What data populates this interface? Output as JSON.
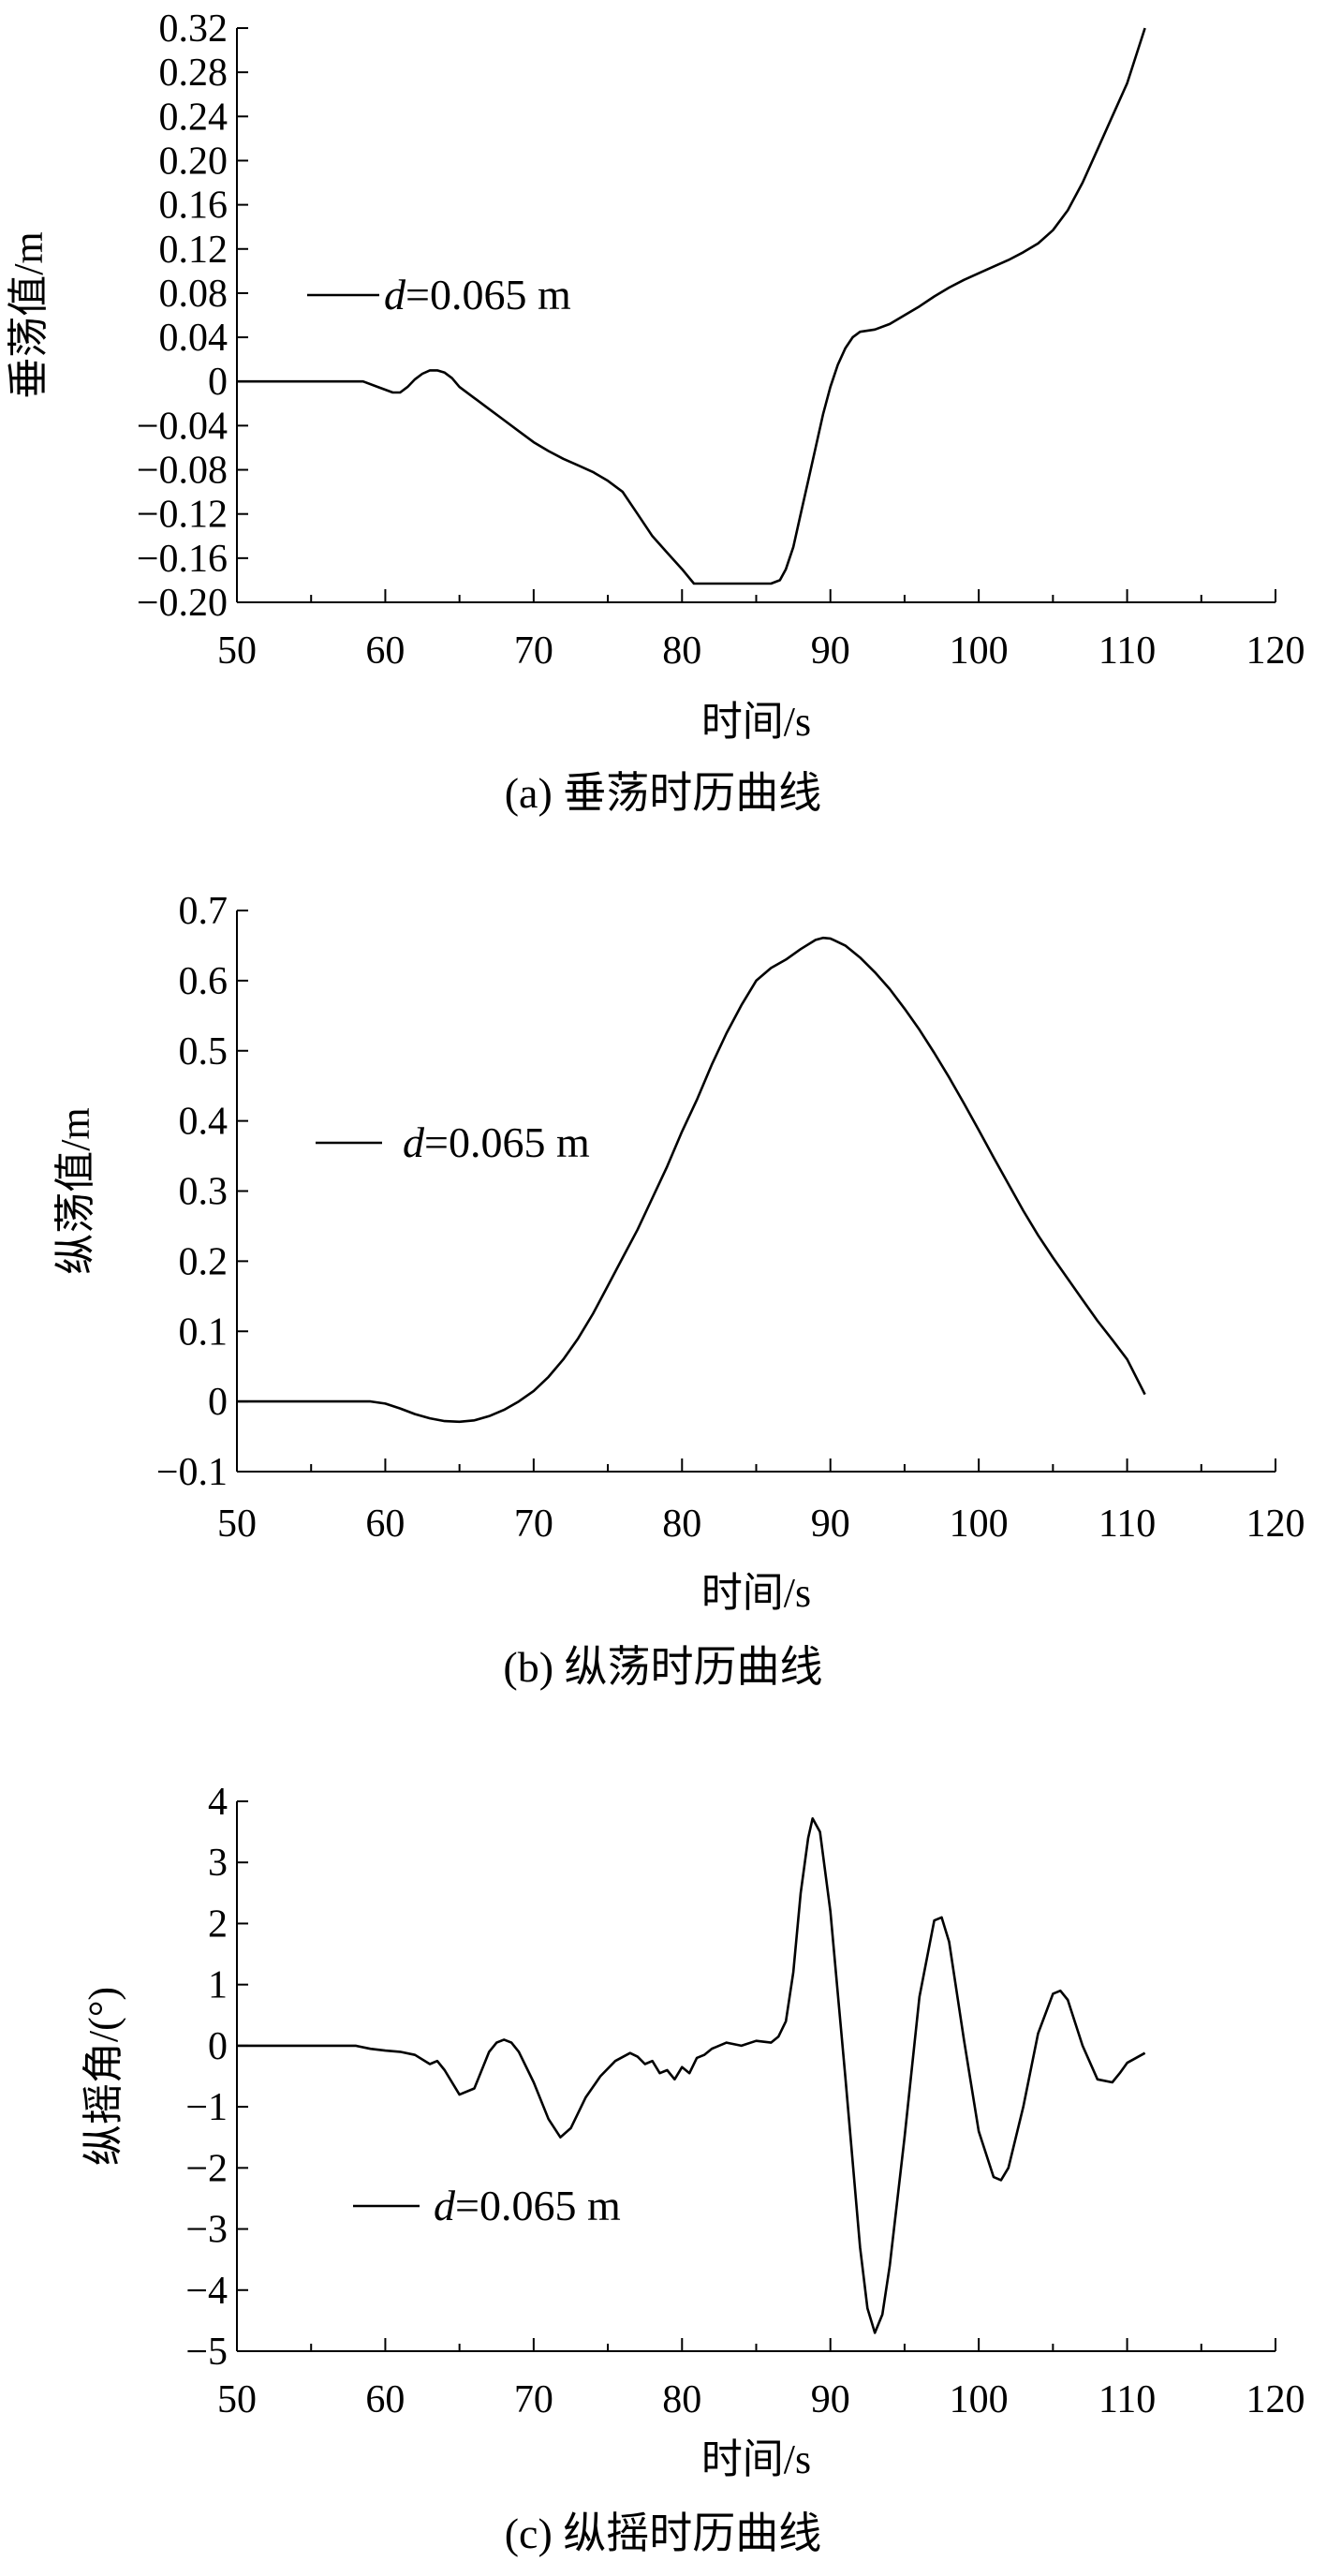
{
  "chart_data": [
    {
      "type": "line",
      "caption": "(a) 垂荡时历曲线",
      "xlabel": "时间/s",
      "ylabel": "垂荡值/m",
      "xlim": [
        50,
        120
      ],
      "ylim": [
        -0.2,
        0.32
      ],
      "xticks": [
        "50",
        "60",
        "70",
        "80",
        "90",
        "100",
        "110",
        "120"
      ],
      "yticks": [
        "0.32",
        "0.28",
        "0.24",
        "0.20",
        "0.16",
        "0.12",
        "0.08",
        "0.04",
        "0",
        "−0.04",
        "−0.08",
        "−0.12",
        "−0.16",
        "−0.20"
      ],
      "ytick_values": [
        0.32,
        0.28,
        0.24,
        0.2,
        0.16,
        0.12,
        0.08,
        0.04,
        0,
        -0.04,
        -0.08,
        -0.12,
        -0.16,
        -0.2
      ],
      "legend": {
        "prefix": "d",
        "suffix": "=0.065 m",
        "placement": "upper-left"
      },
      "series": [
        {
          "x": [
            50,
            58.5,
            59.5,
            60.5,
            61,
            61.5,
            62,
            62.5,
            63,
            63.5,
            64,
            64.5,
            65,
            66,
            67,
            68,
            69,
            70,
            71,
            72,
            73,
            74,
            75,
            76,
            77,
            78,
            79,
            80,
            80.8,
            82,
            84,
            85,
            86,
            86.6,
            87,
            87.5,
            88,
            88.5,
            89,
            89.5,
            90,
            90.5,
            91,
            91.5,
            92,
            93,
            94,
            95,
            96,
            97,
            98,
            99,
            100,
            101,
            102,
            103,
            104,
            105,
            106,
            107,
            108,
            109,
            110,
            111.2
          ],
          "y": [
            0,
            0,
            -0.005,
            -0.01,
            -0.01,
            -0.005,
            0.002,
            0.007,
            0.01,
            0.01,
            0.008,
            0.003,
            -0.005,
            -0.015,
            -0.025,
            -0.035,
            -0.045,
            -0.055,
            -0.063,
            -0.07,
            -0.076,
            -0.082,
            -0.09,
            -0.1,
            -0.12,
            -0.14,
            -0.155,
            -0.17,
            -0.183,
            -0.183,
            -0.183,
            -0.183,
            -0.183,
            -0.18,
            -0.17,
            -0.15,
            -0.12,
            -0.09,
            -0.06,
            -0.03,
            -0.005,
            0.015,
            0.03,
            0.04,
            0.045,
            0.047,
            0.052,
            0.06,
            0.068,
            0.077,
            0.085,
            0.092,
            0.098,
            0.104,
            0.11,
            0.117,
            0.125,
            0.137,
            0.155,
            0.18,
            0.21,
            0.24,
            0.27,
            0.32
          ]
        }
      ]
    },
    {
      "type": "line",
      "caption": "(b) 纵荡时历曲线",
      "xlabel": "时间/s",
      "ylabel": "纵荡值/m",
      "xlim": [
        50,
        120
      ],
      "ylim": [
        -0.1,
        0.7
      ],
      "xticks": [
        "50",
        "60",
        "70",
        "80",
        "90",
        "100",
        "110",
        "120"
      ],
      "yticks": [
        "0.7",
        "0.6",
        "0.5",
        "0.4",
        "0.3",
        "0.2",
        "0.1",
        "0",
        "−0.1"
      ],
      "ytick_values": [
        0.7,
        0.6,
        0.5,
        0.4,
        0.3,
        0.2,
        0.1,
        0,
        -0.1
      ],
      "legend": {
        "prefix": "d",
        "suffix": "=0.065 m",
        "placement": "middle-left"
      },
      "series": [
        {
          "x": [
            50,
            59,
            60,
            61,
            62,
            63,
            64,
            65,
            66,
            67,
            68,
            69,
            70,
            71,
            72,
            73,
            74,
            75,
            76,
            77,
            78,
            79,
            80,
            81,
            82,
            83,
            84,
            85,
            86,
            87,
            88,
            89,
            89.5,
            90,
            91,
            92,
            93,
            94,
            95,
            96,
            97,
            98,
            99,
            100,
            101,
            102,
            103,
            104,
            105,
            106,
            107,
            108,
            109,
            110,
            111.2
          ],
          "y": [
            0,
            0,
            -0.003,
            -0.01,
            -0.018,
            -0.024,
            -0.028,
            -0.029,
            -0.027,
            -0.021,
            -0.012,
            0,
            0.015,
            0.035,
            0.06,
            0.09,
            0.125,
            0.165,
            0.205,
            0.245,
            0.29,
            0.335,
            0.385,
            0.43,
            0.48,
            0.525,
            0.565,
            0.6,
            0.618,
            0.63,
            0.645,
            0.658,
            0.661,
            0.66,
            0.65,
            0.633,
            0.612,
            0.588,
            0.56,
            0.53,
            0.497,
            0.462,
            0.425,
            0.387,
            0.348,
            0.31,
            0.272,
            0.237,
            0.205,
            0.175,
            0.145,
            0.115,
            0.088,
            0.06,
            0.01
          ]
        }
      ]
    },
    {
      "type": "line",
      "caption": "(c) 纵摇时历曲线",
      "xlabel": "时间/s",
      "ylabel": "纵摇角/(°)",
      "xlim": [
        50,
        120
      ],
      "ylim": [
        -5,
        4
      ],
      "xticks": [
        "50",
        "60",
        "70",
        "80",
        "90",
        "100",
        "110",
        "120"
      ],
      "yticks": [
        "4",
        "3",
        "2",
        "1",
        "0",
        "−1",
        "−2",
        "−3",
        "−4",
        "−5"
      ],
      "ytick_values": [
        4,
        3,
        2,
        1,
        0,
        -1,
        -2,
        -3,
        -4,
        -5
      ],
      "legend": {
        "prefix": "d",
        "suffix": "=0.065 m",
        "placement": "lower-left"
      },
      "series": [
        {
          "x": [
            50,
            58,
            59,
            60,
            61,
            62,
            63,
            63.5,
            64,
            65,
            66,
            67,
            67.5,
            68,
            68.5,
            69,
            70,
            71,
            71.8,
            72.5,
            73.5,
            74.5,
            75.5,
            76.5,
            77,
            77.5,
            78,
            78.5,
            79,
            79.5,
            80,
            80.5,
            81,
            81.5,
            82,
            83,
            84,
            85,
            86,
            86.5,
            87,
            87.5,
            88,
            88.5,
            88.8,
            89.3,
            90,
            91,
            92,
            92.5,
            93,
            93.5,
            94,
            95,
            96,
            97,
            97.5,
            98,
            99,
            100,
            101,
            101.5,
            102,
            103,
            104,
            105,
            105.5,
            106,
            107,
            108,
            109,
            109.5,
            110,
            111.2
          ],
          "y": [
            0,
            0,
            -0.05,
            -0.08,
            -0.1,
            -0.15,
            -0.3,
            -0.25,
            -0.4,
            -0.8,
            -0.7,
            -0.1,
            0.05,
            0.1,
            0.05,
            -0.1,
            -0.6,
            -1.2,
            -1.5,
            -1.35,
            -0.85,
            -0.5,
            -0.25,
            -0.12,
            -0.18,
            -0.3,
            -0.25,
            -0.45,
            -0.4,
            -0.55,
            -0.35,
            -0.45,
            -0.2,
            -0.15,
            -0.05,
            0.05,
            0,
            0.08,
            0.05,
            0.15,
            0.4,
            1.2,
            2.5,
            3.4,
            3.72,
            3.5,
            2.2,
            -0.5,
            -3.3,
            -4.3,
            -4.7,
            -4.4,
            -3.6,
            -1.5,
            0.8,
            2.05,
            2.1,
            1.7,
            0.1,
            -1.4,
            -2.15,
            -2.2,
            -2.0,
            -1.0,
            0.2,
            0.85,
            0.9,
            0.75,
            0,
            -0.55,
            -0.6,
            -0.45,
            -0.28,
            -0.12
          ]
        }
      ]
    }
  ]
}
